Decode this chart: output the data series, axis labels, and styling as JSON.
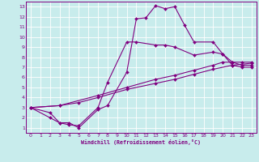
{
  "xlabel": "Windchill (Refroidissement éolien,°C)",
  "xlim": [
    -0.5,
    23.5
  ],
  "ylim": [
    0.5,
    13.5
  ],
  "xticks": [
    0,
    1,
    2,
    3,
    4,
    5,
    6,
    7,
    8,
    9,
    10,
    11,
    12,
    13,
    14,
    15,
    16,
    17,
    18,
    19,
    20,
    21,
    22,
    23
  ],
  "yticks": [
    1,
    2,
    3,
    4,
    5,
    6,
    7,
    8,
    9,
    10,
    11,
    12,
    13
  ],
  "bg_color": "#c8ecec",
  "line_color": "#800080",
  "grid_color": "#aadddd",
  "line1_x": [
    0,
    2,
    3,
    4,
    5,
    7,
    8,
    10,
    11,
    12,
    13,
    14,
    15,
    16,
    17,
    19,
    20,
    21,
    22,
    23
  ],
  "line1_y": [
    3,
    2,
    1.5,
    1.5,
    1,
    2.8,
    3.2,
    6.5,
    11.8,
    11.9,
    13.1,
    12.8,
    13.0,
    11.2,
    9.5,
    9.5,
    8.3,
    7.2,
    7.0,
    7.0
  ],
  "line2_x": [
    0,
    2,
    3,
    4,
    5,
    7,
    8,
    10,
    11,
    13,
    14,
    15,
    17,
    19,
    20,
    21,
    22,
    23
  ],
  "line2_y": [
    3,
    2.5,
    1.5,
    1.3,
    1.2,
    3.0,
    5.5,
    9.5,
    9.5,
    9.2,
    9.2,
    9.0,
    8.2,
    8.5,
    8.3,
    7.5,
    7.2,
    7.2
  ],
  "line3_x": [
    0,
    3,
    7,
    10,
    13,
    15,
    17,
    19,
    20,
    21,
    22,
    23
  ],
  "line3_y": [
    3,
    3.2,
    4.2,
    5.0,
    5.8,
    6.2,
    6.7,
    7.2,
    7.5,
    7.5,
    7.5,
    7.5
  ],
  "line4_x": [
    0,
    3,
    5,
    7,
    10,
    13,
    15,
    17,
    19,
    21,
    23
  ],
  "line4_y": [
    3,
    3.2,
    3.5,
    4.0,
    4.8,
    5.4,
    5.8,
    6.3,
    6.8,
    7.2,
    7.4
  ]
}
